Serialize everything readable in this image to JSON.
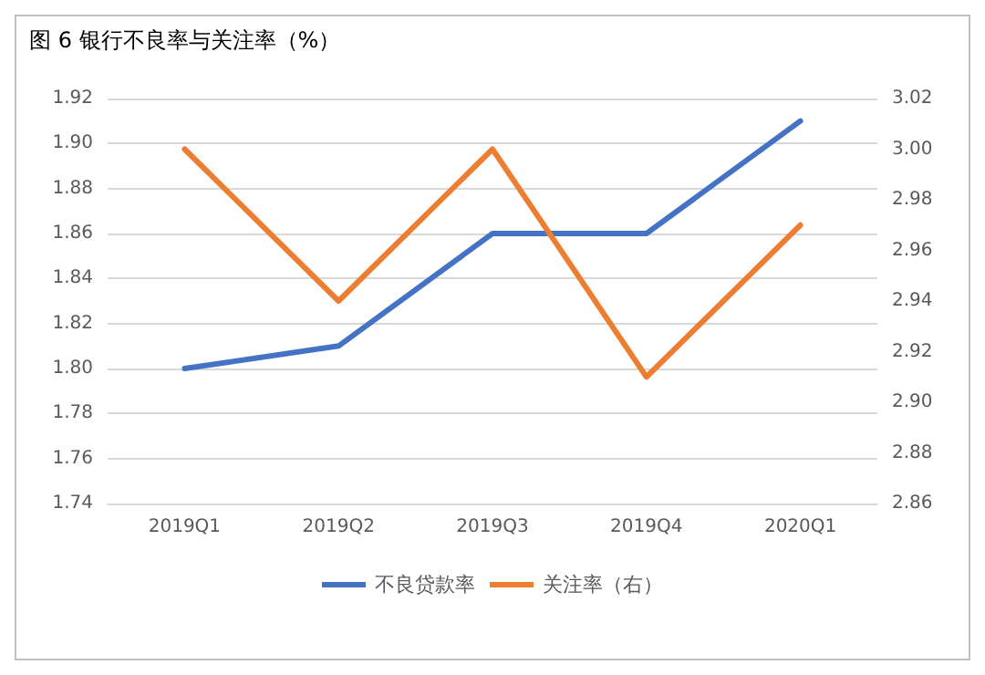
{
  "chart_data": {
    "type": "line",
    "title": "图 6 银行不良率与关注率（%）",
    "categories": [
      "2019Q1",
      "2019Q2",
      "2019Q3",
      "2019Q4",
      "2020Q1"
    ],
    "series": [
      {
        "name": "不良贷款率",
        "color": "#4472c4",
        "values": [
          1.8,
          1.81,
          1.86,
          1.86,
          1.91
        ]
      },
      {
        "name": "关注率（右）",
        "color": "#ed7d31",
        "axis": "y2",
        "values": [
          3.0,
          2.94,
          3.0,
          2.91,
          2.97
        ]
      }
    ],
    "ylim": [
      1.74,
      1.92
    ],
    "yticks": [
      1.74,
      1.76,
      1.78,
      {
        "value": 1.8,
        "label": "1.80"
      },
      1.82,
      1.84,
      1.86,
      1.88,
      {
        "value": 1.9,
        "label": "1.90"
      },
      1.92
    ],
    "y2lim": [
      2.86,
      3.02
    ],
    "y2ticks": [
      2.86,
      2.88,
      {
        "value": 2.9,
        "label": "2.90"
      },
      2.92,
      2.94,
      2.96,
      2.98,
      {
        "value": 3,
        "label": "3.00"
      },
      3.02
    ],
    "grid": "y",
    "legend": "bottom",
    "marker": "none",
    "line_style": "solid"
  }
}
